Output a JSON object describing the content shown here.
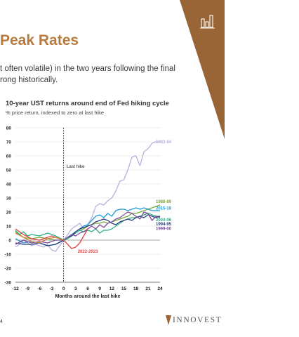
{
  "heading": "Peak Rates",
  "body_lines": [
    "t often volatile) in the two years following the final",
    "rong historically."
  ],
  "page_number": "4",
  "logo_text": "INNOVEST",
  "colors": {
    "brand_brown": "#9a6536",
    "title_brown": "#b97a3e"
  },
  "icon": "bar-chart-icon",
  "chart_data": {
    "type": "line",
    "title": "10-year UST returns around end of Fed hiking cycle",
    "subtitle": "% price return, indexed to zero at last hike",
    "xlabel": "Months around the last hike",
    "ylabel": "",
    "xlim": [
      -12,
      24
    ],
    "ylim": [
      -30,
      80
    ],
    "xticks": [
      -12,
      -9,
      -6,
      -3,
      0,
      3,
      6,
      9,
      12,
      15,
      18,
      21,
      24
    ],
    "yticks": [
      -30,
      -20,
      -10,
      0,
      10,
      20,
      30,
      40,
      50,
      60,
      70,
      80
    ],
    "grid": "horizontal",
    "vline_label": "Last hike",
    "series": [
      {
        "name": "1983-84",
        "color": "#b6b2e0",
        "x": [
          -12,
          -11,
          -10,
          -9,
          -8,
          -7,
          -6,
          -5,
          -4,
          -3,
          -2,
          -1,
          0,
          1,
          2,
          3,
          4,
          5,
          6,
          7,
          8,
          9,
          10,
          11,
          12,
          13,
          14,
          15,
          16,
          17,
          18,
          19,
          20,
          21,
          22,
          23,
          24
        ],
        "y": [
          -5,
          -3,
          0,
          -2,
          -4,
          -3,
          -4,
          -5,
          -3,
          -7,
          -8,
          -4,
          0,
          4,
          8,
          10,
          12,
          8,
          11,
          16,
          24,
          26,
          25,
          28,
          30,
          35,
          42,
          43,
          50,
          59,
          60,
          53,
          63,
          65,
          69,
          70,
          70
        ]
      },
      {
        "name": "1988-89",
        "color": "#7ea83a",
        "x": [
          -12,
          -10,
          -8,
          -6,
          -4,
          -2,
          0,
          1,
          2,
          3,
          4,
          5,
          6,
          7,
          8,
          9,
          10,
          11,
          12,
          13,
          14,
          15,
          16,
          17,
          18,
          19,
          20,
          21,
          22,
          23,
          24
        ],
        "y": [
          6,
          2,
          1,
          2,
          1,
          0,
          0,
          1,
          3,
          5,
          7,
          8,
          10,
          11,
          12,
          12,
          13,
          12,
          13,
          14,
          15,
          16,
          17,
          19,
          19,
          20,
          21,
          22,
          23,
          24,
          25
        ]
      },
      {
        "name": "2015-18",
        "color": "#1e9bd7",
        "x": [
          -12,
          -10,
          -8,
          -6,
          -4,
          -2,
          0,
          1,
          2,
          3,
          4,
          5,
          6,
          7,
          8,
          9,
          10,
          11,
          12,
          13,
          14,
          15,
          16,
          17,
          18,
          19,
          20,
          21,
          22,
          23,
          24
        ],
        "y": [
          1,
          -2,
          -1,
          -2,
          -4,
          -3,
          0,
          2,
          4,
          6,
          8,
          10,
          11,
          14,
          17,
          18,
          16,
          19,
          17,
          21,
          22,
          22,
          21,
          22,
          23,
          22,
          23,
          22,
          21,
          21,
          21
        ]
      },
      {
        "name": "2004-06",
        "color": "#2fae86",
        "x": [
          -12,
          -11,
          -10,
          -9,
          -8,
          -6,
          -4,
          -2,
          0,
          1,
          2,
          3,
          4,
          5,
          6,
          7,
          8,
          9,
          10,
          11,
          12,
          13,
          14,
          15,
          16,
          17,
          18,
          19,
          20,
          21,
          22,
          23,
          24
        ],
        "y": [
          7,
          4,
          6,
          3,
          4,
          3,
          5,
          3,
          0,
          1,
          3,
          5,
          7,
          6,
          7,
          6,
          8,
          5,
          7,
          7,
          8,
          10,
          12,
          14,
          15,
          16,
          16,
          17,
          18,
          19,
          18,
          17,
          17
        ]
      },
      {
        "name": "1994-95",
        "color": "#283c7a",
        "x": [
          -12,
          -10,
          -8,
          -6,
          -4,
          -2,
          0,
          1,
          2,
          3,
          4,
          5,
          6,
          7,
          8,
          9,
          10,
          11,
          12,
          13,
          14,
          15,
          16,
          17,
          18,
          19,
          20,
          21,
          22,
          23,
          24
        ],
        "y": [
          -2,
          -3,
          -3,
          -2,
          -4,
          -3,
          0,
          2,
          3,
          6,
          8,
          9,
          10,
          11,
          13,
          14,
          15,
          14,
          12,
          11,
          13,
          14,
          15,
          14,
          16,
          17,
          16,
          18,
          17,
          16,
          17
        ]
      },
      {
        "name": "1999-00",
        "color": "#7f4a9e",
        "x": [
          -12,
          -10,
          -8,
          -6,
          -4,
          -2,
          0,
          1,
          2,
          3,
          4,
          5,
          6,
          7,
          8,
          9,
          10,
          11,
          12,
          13,
          14,
          15,
          16,
          17,
          18,
          19,
          20,
          21,
          22,
          23,
          24
        ],
        "y": [
          -3,
          0,
          -2,
          -1,
          -2,
          0,
          0,
          2,
          4,
          3,
          5,
          6,
          8,
          10,
          8,
          11,
          9,
          12,
          13,
          15,
          16,
          18,
          20,
          19,
          17,
          15,
          20,
          19,
          14,
          17,
          16
        ]
      },
      {
        "name": "2022-2023",
        "color": "#e04545",
        "x": [
          -12,
          -10,
          -8,
          -6,
          -4,
          -3,
          -2,
          -1,
          0,
          1,
          2,
          3,
          4,
          5,
          6
        ],
        "y": [
          8,
          4,
          1,
          0,
          2,
          3,
          2,
          1,
          0,
          -3,
          -6,
          -5,
          -2,
          3,
          8
        ]
      },
      {
        "name": "",
        "color": "#c9873a",
        "x": [
          -12,
          -10,
          -8,
          -6,
          -4,
          -2,
          0
        ],
        "y": [
          5,
          2,
          -1,
          -2,
          1,
          2,
          0
        ]
      }
    ]
  }
}
